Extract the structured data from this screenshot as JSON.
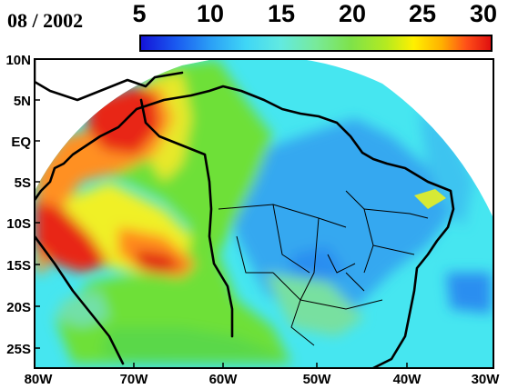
{
  "date_label": "08 / 2002",
  "colorbar": {
    "ticks": [
      "5",
      "10",
      "15",
      "20",
      "25",
      "30"
    ],
    "min": 5,
    "max": 30
  },
  "axes": {
    "lat_labels": [
      "10N",
      "5N",
      "EQ",
      "5S",
      "10S",
      "15S",
      "20S",
      "25S"
    ],
    "lon_labels": [
      "80W",
      "70W",
      "60W",
      "50W",
      "40W",
      "30W"
    ]
  },
  "colors": {
    "ocean_cyan": "#46e6f0",
    "blue_zone": "#36a8f0",
    "green_zone": "#6ee038",
    "yellow_zone": "#f0f028",
    "orange_zone": "#ff9020",
    "red_zone": "#e82818"
  }
}
